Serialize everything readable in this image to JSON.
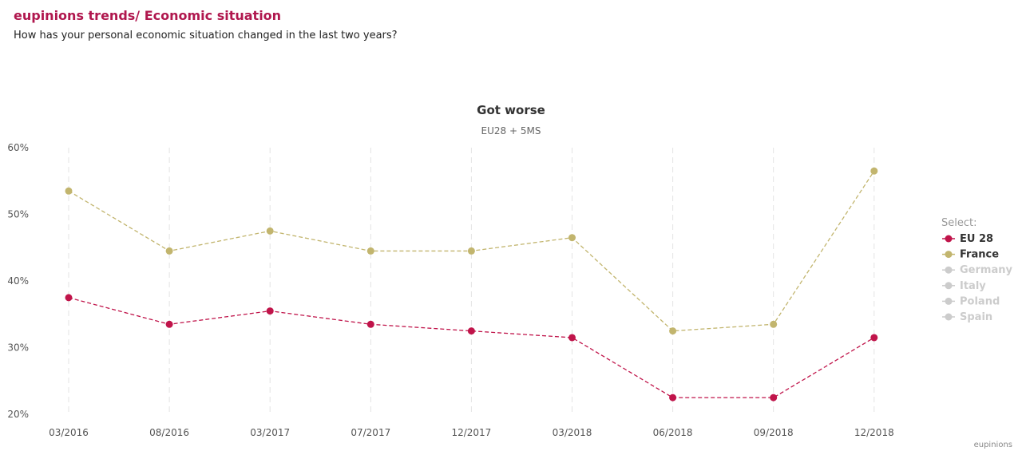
{
  "header": {
    "title": "eupinions trends/ Economic situation",
    "subtitle": "How has your personal economic situation changed in the last two years?"
  },
  "credit": "eupinions",
  "legend": {
    "title": "Select:",
    "items": [
      {
        "label": "EU 28",
        "active": true,
        "color": "#c0144a"
      },
      {
        "label": "France",
        "active": true,
        "color": "#c2b56e"
      },
      {
        "label": "Germany",
        "active": false,
        "color": "#cccccc"
      },
      {
        "label": "Italy",
        "active": false,
        "color": "#cccccc"
      },
      {
        "label": "Poland",
        "active": false,
        "color": "#cccccc"
      },
      {
        "label": "Spain",
        "active": false,
        "color": "#cccccc"
      }
    ]
  },
  "chart_data": {
    "type": "line",
    "title": "Got worse",
    "subtitle": "EU28 + 5MS",
    "categories": [
      "03/2016",
      "08/2016",
      "03/2017",
      "07/2017",
      "12/2017",
      "03/2018",
      "06/2018",
      "09/2018",
      "12/2018"
    ],
    "ylim": [
      20,
      60
    ],
    "yticks": [
      20,
      30,
      40,
      50,
      60
    ],
    "ytick_labels": [
      "20%",
      "30%",
      "40%",
      "50%",
      "60%"
    ],
    "grid": "vertical dashed",
    "legend_position": "right",
    "series": [
      {
        "name": "EU 28",
        "color": "#c0144a",
        "values": [
          37.5,
          33.5,
          35.5,
          33.5,
          32.5,
          31.5,
          22.5,
          22.5,
          31.5
        ]
      },
      {
        "name": "France",
        "color": "#c2b56e",
        "values": [
          53.5,
          44.5,
          47.5,
          44.5,
          44.5,
          46.5,
          32.5,
          33.5,
          56.5
        ]
      }
    ]
  }
}
